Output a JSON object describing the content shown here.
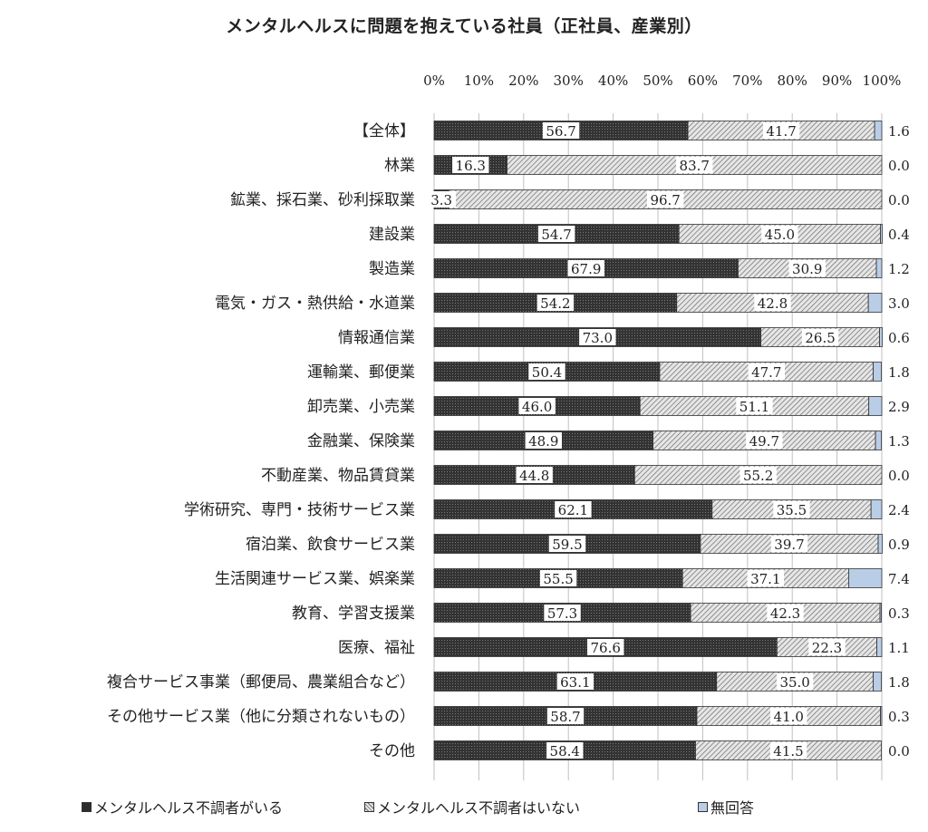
{
  "chart_data": {
    "type": "bar",
    "stacked": true,
    "orientation": "horizontal",
    "title": "メンタルヘルスに問題を抱えている社員（正社員、産業別）",
    "xlim": [
      0,
      100
    ],
    "x_ticks": [
      "0%",
      "10%",
      "20%",
      "30%",
      "40%",
      "50%",
      "60%",
      "70%",
      "80%",
      "90%",
      "100%"
    ],
    "grid": true,
    "legend_position": "bottom",
    "categories": [
      "【全体】",
      "林業",
      "鉱業、採石業、砂利採取業",
      "建設業",
      "製造業",
      "電気・ガス・熱供給・水道業",
      "情報通信業",
      "運輸業、郵便業",
      "卸売業、小売業",
      "金融業、保険業",
      "不動産業、物品賃貸業",
      "学術研究、専門・技術サービス業",
      "宿泊業、飲食サービス業",
      "生活関連サービス業、娯楽業",
      "教育、学習支援業",
      "医療、福祉",
      "複合サービス事業（郵便局、農業組合など）",
      "その他サービス業（他に分類されないもの）",
      "その他"
    ],
    "series": [
      {
        "name": "メンタルヘルス不調者がいる",
        "values": [
          56.7,
          16.3,
          3.3,
          54.7,
          67.9,
          54.2,
          73.0,
          50.4,
          46.0,
          48.9,
          44.8,
          62.1,
          59.5,
          55.5,
          57.3,
          76.6,
          63.1,
          58.7,
          58.4
        ],
        "labels": [
          "56.7",
          "16.3",
          "3.3",
          "54.7",
          "67.9",
          "54.2",
          "73.0",
          "50.4",
          "46.0",
          "48.9",
          "44.8",
          "62.1",
          "59.5",
          "55.5",
          "57.3",
          "76.6",
          "63.1",
          "58.7",
          "58.4"
        ],
        "color": "#2b2b2b"
      },
      {
        "name": "メンタルヘルス不調者はいない",
        "values": [
          41.7,
          83.7,
          96.7,
          45.0,
          30.9,
          42.8,
          26.5,
          47.7,
          51.1,
          49.7,
          55.2,
          35.5,
          39.7,
          37.1,
          42.3,
          22.3,
          35.0,
          41.0,
          41.5
        ],
        "labels": [
          "41.7",
          "83.7",
          "96.7",
          "45.0",
          "30.9",
          "42.8",
          "26.5",
          "47.7",
          "51.1",
          "49.7",
          "55.2",
          "35.5",
          "39.7",
          "37.1",
          "42.3",
          "22.3",
          "35.0",
          "41.0",
          "41.5"
        ],
        "color": "#d6d6d6"
      },
      {
        "name": "無回答",
        "values": [
          1.6,
          0.0,
          0.0,
          0.4,
          1.2,
          3.0,
          0.6,
          1.8,
          2.9,
          1.3,
          0.0,
          2.4,
          0.9,
          7.4,
          0.3,
          1.1,
          1.8,
          0.3,
          0.0
        ],
        "labels": [
          "1.6",
          "0.0",
          "0.0",
          "0.4",
          "1.2",
          "3.0",
          "0.6",
          "1.8",
          "2.9",
          "1.3",
          "0.0",
          "2.4",
          "0.9",
          "7.4",
          "0.3",
          "1.1",
          "1.8",
          "0.3",
          "0.0"
        ],
        "color": "#b9cde6"
      }
    ]
  }
}
